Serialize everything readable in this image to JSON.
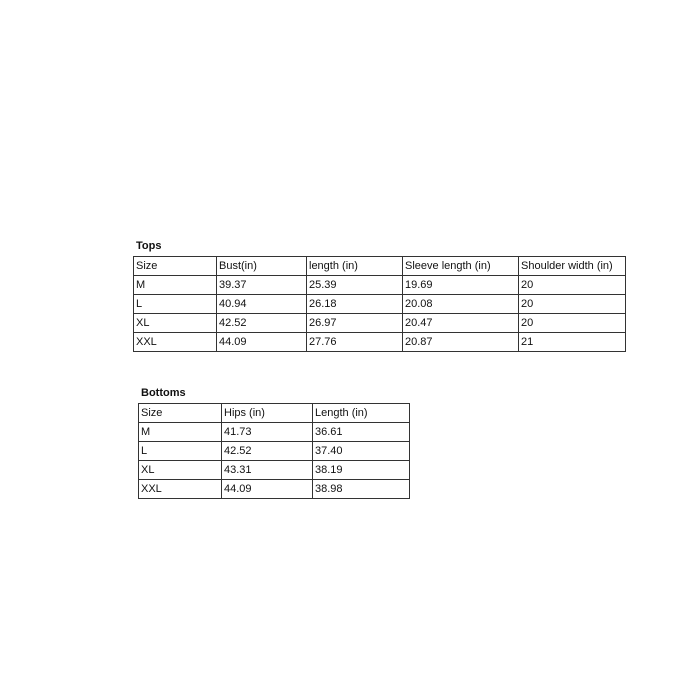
{
  "tops": {
    "title": "Tops",
    "headers": [
      "Size",
      "Bust(in)",
      "length (in)",
      "Sleeve length (in)",
      "Shoulder width (in)"
    ],
    "rows": [
      [
        "M",
        "39.37",
        "25.39",
        "19.69",
        "20"
      ],
      [
        "L",
        "40.94",
        "26.18",
        "20.08",
        "20"
      ],
      [
        "XL",
        "42.52",
        "26.97",
        "20.47",
        "20"
      ],
      [
        "XXL",
        "44.09",
        "27.76",
        "20.87",
        "21"
      ]
    ]
  },
  "bottoms": {
    "title": "Bottoms",
    "headers": [
      "Size",
      "Hips (in)",
      "Length (in)"
    ],
    "rows": [
      [
        "M",
        "41.73",
        "36.61"
      ],
      [
        "L",
        "42.52",
        "37.40"
      ],
      [
        "XL",
        "43.31",
        "38.19"
      ],
      [
        "XXL",
        "44.09",
        "38.98"
      ]
    ]
  }
}
